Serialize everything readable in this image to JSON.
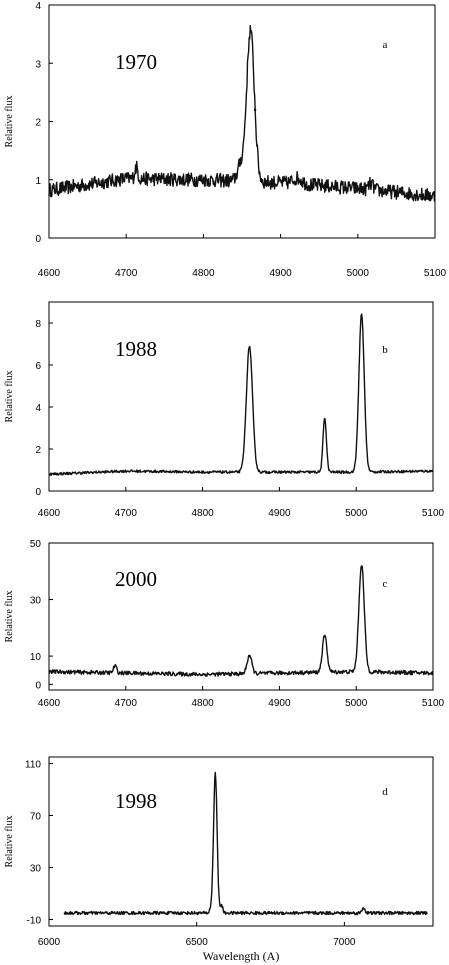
{
  "chart_data": [
    {
      "type": "line",
      "panel_letter": "a",
      "year_label": "1970",
      "ylabel": "Relative flux",
      "xlabel": "",
      "xlim": [
        4600,
        5100
      ],
      "ylim": [
        0,
        4
      ],
      "x_ticks": [
        4600,
        4700,
        4800,
        4900,
        5000,
        5100
      ],
      "y_ticks": [
        0,
        1,
        2,
        3,
        4
      ],
      "continuum": [
        [
          4600,
          0.82
        ],
        [
          4700,
          1.02
        ],
        [
          4800,
          1.0
        ],
        [
          4900,
          0.95
        ],
        [
          5000,
          0.85
        ],
        [
          5100,
          0.72
        ]
      ],
      "noise": 0.12,
      "lines": [
        {
          "center": 4861,
          "peak": 2.6,
          "width": 5
        },
        {
          "center": 4848,
          "peak": 0.25,
          "width": 4
        },
        {
          "center": 4922,
          "peak": 0.1,
          "width": 6
        },
        {
          "center": 5017,
          "peak": 0.1,
          "width": 3
        },
        {
          "center": 4713,
          "peak": 0.2,
          "width": 2
        }
      ],
      "points": [
        [
          4867,
          2.2
        ]
      ]
    },
    {
      "type": "line",
      "panel_letter": "b",
      "year_label": "1988",
      "ylabel": "Relative flux",
      "xlabel": "",
      "xlim": [
        4600,
        5100
      ],
      "ylim": [
        0,
        9
      ],
      "x_ticks": [
        4600,
        4700,
        4800,
        4900,
        5000,
        5100
      ],
      "y_ticks": [
        0,
        2,
        4,
        6,
        8
      ],
      "continuum": [
        [
          4600,
          0.8
        ],
        [
          4700,
          0.95
        ],
        [
          4800,
          0.9
        ],
        [
          4900,
          0.9
        ],
        [
          5000,
          0.9
        ],
        [
          5100,
          0.95
        ]
      ],
      "noise": 0.06,
      "lines": [
        {
          "center": 4861,
          "peak": 6.0,
          "width": 4
        },
        {
          "center": 4959,
          "peak": 2.6,
          "width": 2.2
        },
        {
          "center": 5007,
          "peak": 7.5,
          "width": 3.5
        }
      ],
      "points": []
    },
    {
      "type": "line",
      "panel_letter": "c",
      "year_label": "2000",
      "ylabel": "Relative flux",
      "xlabel": "",
      "xlim": [
        4600,
        5100
      ],
      "ylim": [
        -2,
        50
      ],
      "x_ticks": [
        4600,
        4700,
        4800,
        4900,
        5000,
        5100
      ],
      "y_ticks": [
        0,
        10,
        30,
        50
      ],
      "y_tick_labels": [
        "0",
        "10",
        "30",
        "50"
      ],
      "continuum": [
        [
          4600,
          4.5
        ],
        [
          4700,
          4.0
        ],
        [
          4800,
          3.5
        ],
        [
          4900,
          4.0
        ],
        [
          5000,
          4.5
        ],
        [
          5100,
          4.0
        ]
      ],
      "noise": 0.7,
      "lines": [
        {
          "center": 4686,
          "peak": 2.5,
          "width": 2
        },
        {
          "center": 4861,
          "peak": 6.5,
          "width": 3
        },
        {
          "center": 4959,
          "peak": 13.0,
          "width": 3
        },
        {
          "center": 5007,
          "peak": 38.0,
          "width": 3.5
        }
      ],
      "points": []
    },
    {
      "type": "line",
      "panel_letter": "d",
      "year_label": "1998",
      "ylabel": "Relative flux",
      "xlabel": "Wavelength (A)",
      "xlim": [
        6000,
        7300
      ],
      "ylim": [
        -15,
        115
      ],
      "x_ticks": [
        6000,
        6500,
        7000
      ],
      "y_ticks": [
        -10,
        30,
        70,
        110
      ],
      "continuum": [
        [
          6050,
          -5
        ],
        [
          6500,
          -5
        ],
        [
          7000,
          -5
        ],
        [
          7280,
          -5
        ]
      ],
      "noise": 1.2,
      "lines": [
        {
          "center": 6563,
          "peak": 108,
          "width": 6
        },
        {
          "center": 6548,
          "peak": 3,
          "width": 4
        },
        {
          "center": 6584,
          "peak": 6,
          "width": 4
        },
        {
          "center": 7065,
          "peak": 4,
          "width": 5
        }
      ],
      "points": []
    }
  ]
}
